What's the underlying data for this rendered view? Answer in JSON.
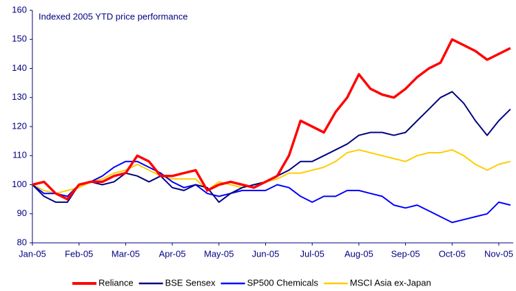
{
  "chart_data": {
    "type": "line",
    "annotation": "Indexed 2005 YTD price performance",
    "categories": [
      "Jan-05",
      null,
      null,
      null,
      "Feb-05",
      null,
      null,
      null,
      "Mar-05",
      null,
      null,
      null,
      "Apr-05",
      null,
      null,
      null,
      "May-05",
      null,
      null,
      null,
      "Jun-05",
      null,
      null,
      null,
      "Jul-05",
      null,
      null,
      null,
      "Aug-05",
      null,
      null,
      null,
      "Sep-05",
      null,
      null,
      null,
      "Oct-05",
      null,
      null,
      null,
      "Nov-05",
      null
    ],
    "series": [
      {
        "name": "Reliance",
        "color": "#ff0000",
        "values": [
          100,
          101,
          97,
          95,
          100,
          101,
          101,
          103,
          104,
          110,
          108,
          103,
          103,
          104,
          105,
          98,
          100,
          101,
          100,
          99,
          101,
          103,
          110,
          122,
          120,
          118,
          125,
          130,
          138,
          133,
          131,
          130,
          133,
          137,
          140,
          142,
          150,
          148,
          146,
          143,
          145,
          147
        ]
      },
      {
        "name": "BSE Sensex",
        "color": "#000080",
        "values": [
          100,
          96,
          94,
          94,
          100,
          101,
          100,
          101,
          104,
          103,
          101,
          103,
          99,
          98,
          100,
          99,
          94,
          97,
          99,
          100,
          101,
          103,
          105,
          108,
          108,
          110,
          112,
          114,
          117,
          118,
          118,
          117,
          118,
          122,
          126,
          130,
          132,
          128,
          122,
          117,
          122,
          126
        ]
      },
      {
        "name": "SP500 Chemicals",
        "color": "#0000ff",
        "values": [
          100,
          97,
          97,
          96,
          100,
          101,
          103,
          106,
          108,
          108,
          106,
          104,
          101,
          99,
          100,
          97,
          96,
          97,
          98,
          98,
          98,
          100,
          99,
          96,
          94,
          96,
          96,
          98,
          98,
          97,
          96,
          93,
          92,
          93,
          91,
          89,
          87,
          88,
          89,
          90,
          94,
          93
        ]
      },
      {
        "name": "MSCI Asia ex-Japan",
        "color": "#ffcc00",
        "values": [
          100,
          98,
          97,
          98,
          99,
          101,
          102,
          104,
          105,
          107,
          105,
          103,
          102,
          102,
          102,
          98,
          101,
          100,
          99,
          100,
          101,
          102,
          104,
          104,
          105,
          106,
          108,
          111,
          112,
          111,
          110,
          109,
          108,
          110,
          111,
          111,
          112,
          110,
          107,
          105,
          107,
          108
        ]
      }
    ],
    "ylim": [
      80,
      160
    ],
    "yticks": [
      80,
      90,
      100,
      110,
      120,
      130,
      140,
      150,
      160
    ],
    "grid": false
  }
}
